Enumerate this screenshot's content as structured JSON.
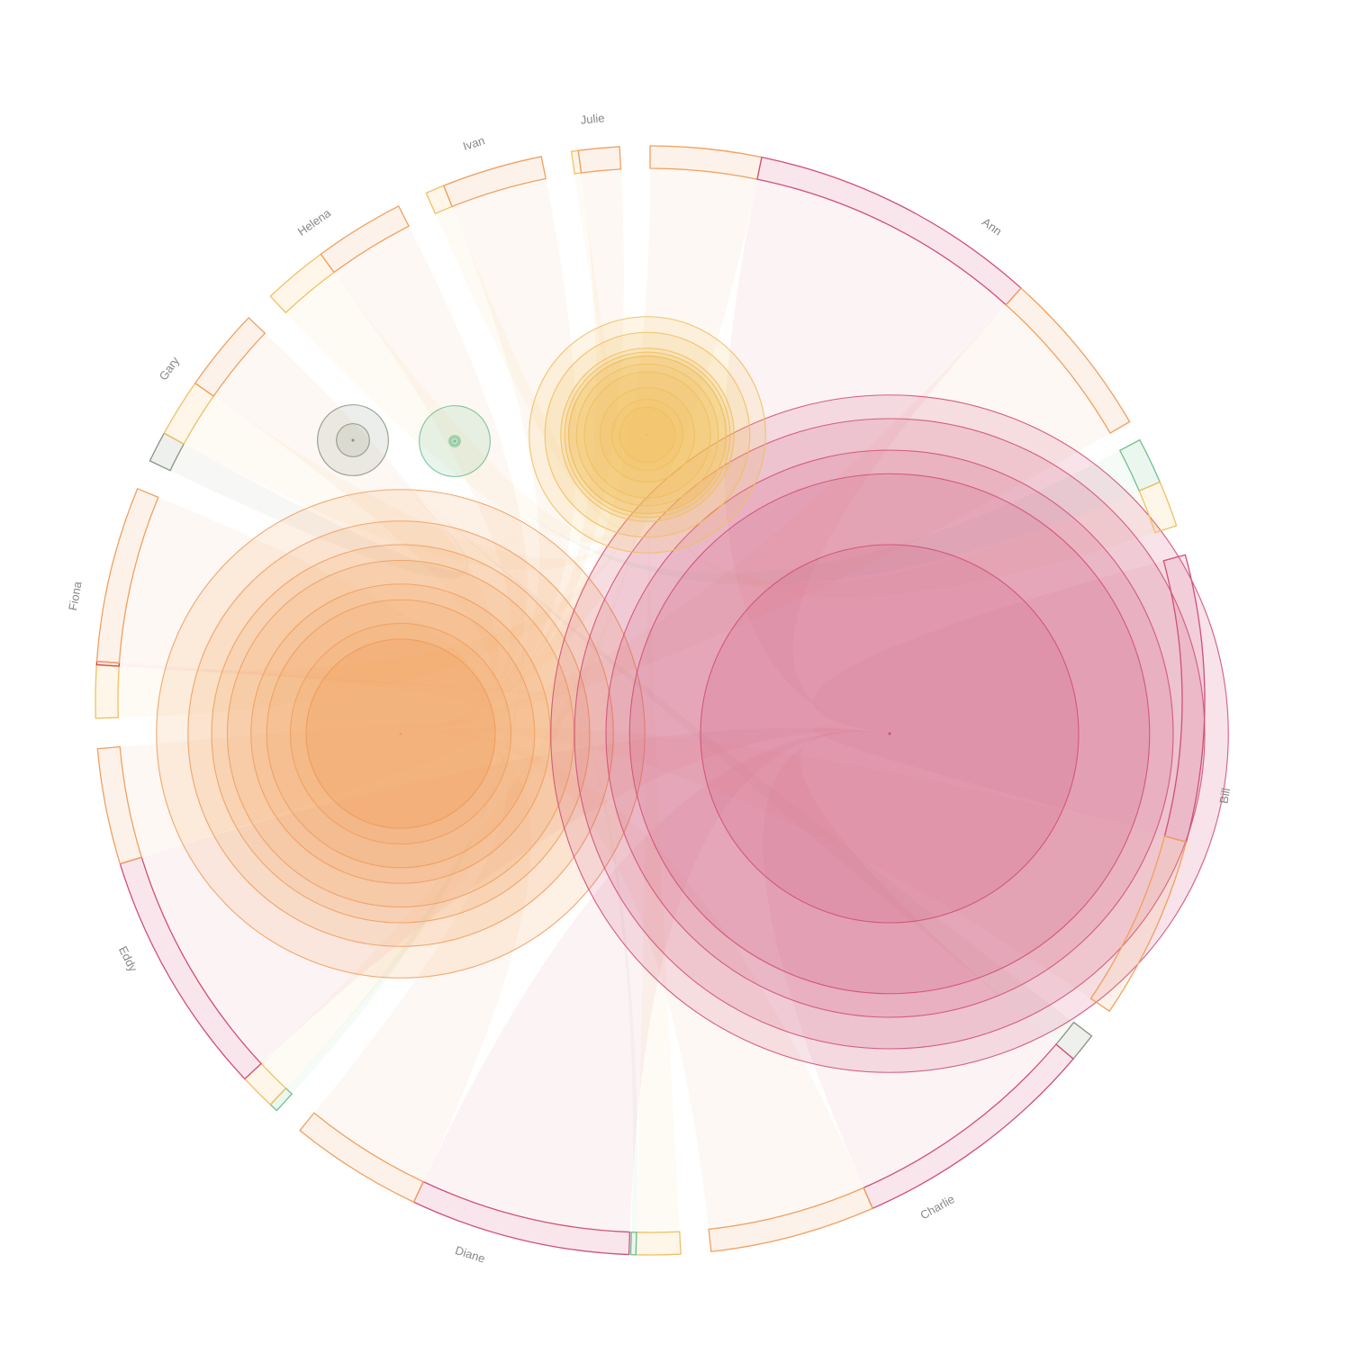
{
  "diagram": {
    "type": "chord-with-bubbles",
    "groups": [
      {
        "name": "Ann",
        "segments": [
          {
            "kind": "orange",
            "value": 6.5
          },
          {
            "kind": "pink",
            "value": 17
          },
          {
            "kind": "orange",
            "value": 10
          },
          {
            "kind": "gap",
            "value": 1.2
          },
          {
            "kind": "green",
            "value": 2.7
          },
          {
            "kind": "yellow",
            "value": 2.7
          }
        ]
      },
      {
        "name": "Bill",
        "segments": [
          {
            "kind": "pink",
            "value": 16.8
          },
          {
            "kind": "orange",
            "value": 10.8
          }
        ]
      },
      {
        "name": "Charlie",
        "segments": [
          {
            "kind": "gray",
            "value": 1.7
          },
          {
            "kind": "pink",
            "value": 14.6
          },
          {
            "kind": "orange",
            "value": 9.7
          }
        ]
      },
      {
        "name": "Diane",
        "segments": [
          {
            "kind": "yellow",
            "value": 2.6
          },
          {
            "kind": "green",
            "value": 0.3
          },
          {
            "kind": "gap",
            "value": 0.1
          },
          {
            "kind": "pink",
            "value": 12.9
          },
          {
            "kind": "orange",
            "value": 7.8
          }
        ]
      },
      {
        "name": "Eddy",
        "segments": [
          {
            "kind": "green",
            "value": 0.5
          },
          {
            "kind": "yellow",
            "value": 2.1
          },
          {
            "kind": "pink",
            "value": 14.5
          },
          {
            "kind": "orange",
            "value": 6.8
          }
        ]
      },
      {
        "name": "Fiona",
        "segments": [
          {
            "kind": "yellow",
            "value": 3.1
          },
          {
            "kind": "red",
            "value": 0.2
          },
          {
            "kind": "orange",
            "value": 10.3
          }
        ]
      },
      {
        "name": "Gary",
        "segments": [
          {
            "kind": "gray",
            "value": 1.8
          },
          {
            "kind": "yellow",
            "value": 3.4
          },
          {
            "kind": "orange",
            "value": 4.9
          }
        ]
      },
      {
        "name": "Helena",
        "segments": [
          {
            "kind": "yellow",
            "value": 3.8
          },
          {
            "kind": "orange",
            "value": 5.3
          }
        ]
      },
      {
        "name": "Ivan",
        "segments": [
          {
            "kind": "yellow",
            "value": 1.1
          },
          {
            "kind": "orange",
            "value": 5.9
          }
        ]
      },
      {
        "name": "Julie",
        "segments": [
          {
            "kind": "yellow",
            "value": 0.4
          },
          {
            "kind": "orange",
            "value": 2.4
          }
        ]
      }
    ],
    "bubbles": [
      {
        "kind": "orange",
        "rings": [
          12,
          12,
          14,
          17,
          19,
          22,
          24,
          27,
          31
        ]
      },
      {
        "kind": "pink",
        "rings": [
          24,
          33,
          36,
          40,
          43
        ]
      },
      {
        "kind": "yellow",
        "rings": [
          3.5,
          4.5,
          6,
          8,
          9,
          10,
          10,
          10.5,
          11,
          13,
          15
        ]
      },
      {
        "kind": "green",
        "rings": [
          0.5,
          0.7,
          4.5
        ]
      },
      {
        "kind": "gray",
        "rings": [
          0.1,
          2.1,
          4.5
        ]
      }
    ],
    "colors": {
      "orange": "#f0a060",
      "pink": "#d05078",
      "yellow": "#f0c060",
      "green": "#70c090",
      "gray": "#8a9480",
      "red": "#e04040"
    }
  }
}
